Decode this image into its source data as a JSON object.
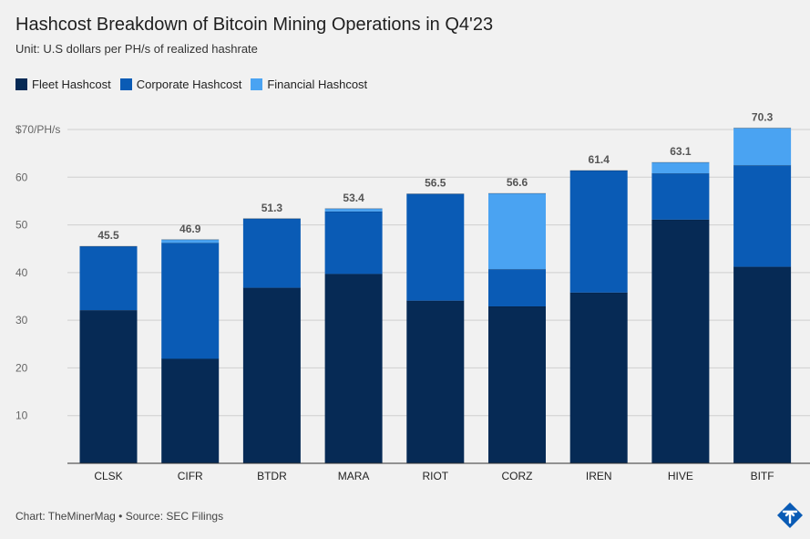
{
  "title": "Hashcost Breakdown of Bitcoin Mining Operations in Q4'23",
  "subtitle": "Unit: U.S dollars per PH/s of realized hashrate",
  "footer": "Chart: TheMinerMag • Source: SEC Filings",
  "colors": {
    "fleet": "#062a55",
    "corporate": "#0a5bb5",
    "financial": "#4aa3f2",
    "grid": "#cfcfcf",
    "axis_text": "#666666",
    "total_label": "#555555"
  },
  "legend": [
    {
      "name": "Fleet Hashcost",
      "color": "#062a55"
    },
    {
      "name": "Corporate Hashcost",
      "color": "#0a5bb5"
    },
    {
      "name": "Financial Hashcost",
      "color": "#4aa3f2"
    }
  ],
  "chart_data": {
    "type": "bar",
    "stacked": true,
    "title": "Hashcost Breakdown of Bitcoin Mining Operations in Q4'23",
    "subtitle": "Unit: U.S dollars per PH/s of realized hashrate",
    "categories": [
      "CLSK",
      "CIFR",
      "BTDR",
      "MARA",
      "RIOT",
      "CORZ",
      "IREN",
      "HIVE",
      "BITF"
    ],
    "series": [
      {
        "name": "Fleet Hashcost",
        "values": [
          32.1,
          21.9,
          36.8,
          39.7,
          34.1,
          32.9,
          35.8,
          51.1,
          41.2
        ]
      },
      {
        "name": "Corporate Hashcost",
        "values": [
          13.4,
          24.3,
          14.5,
          13.1,
          22.4,
          7.8,
          25.6,
          9.7,
          21.3
        ]
      },
      {
        "name": "Financial Hashcost",
        "values": [
          0.0,
          0.7,
          0.0,
          0.6,
          0.0,
          15.9,
          0.0,
          2.3,
          7.8
        ]
      }
    ],
    "totals": [
      "45.5",
      "46.9",
      "51.3",
      "53.4",
      "56.5",
      "56.6",
      "61.4",
      "63.1",
      "70.3"
    ],
    "ylim": [
      0,
      70
    ],
    "yticks": [
      {
        "value": 0,
        "label": ""
      },
      {
        "value": 10,
        "label": "10"
      },
      {
        "value": 20,
        "label": "20"
      },
      {
        "value": 30,
        "label": "30"
      },
      {
        "value": 40,
        "label": "40"
      },
      {
        "value": 50,
        "label": "50"
      },
      {
        "value": 60,
        "label": "60"
      },
      {
        "value": 70,
        "label": "$70/PH/s"
      }
    ],
    "grid": true,
    "legend_position": "top-left"
  }
}
